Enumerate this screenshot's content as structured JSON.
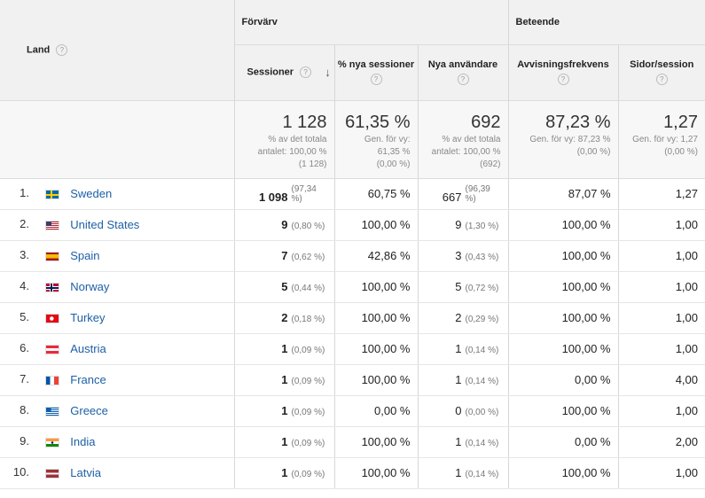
{
  "header": {
    "dimension": "Land",
    "help": "?",
    "groups": [
      "Förvärv",
      "Beteende"
    ],
    "columns": [
      {
        "label": "Sessioner",
        "help": "?"
      },
      {
        "label": "% nya sessioner",
        "help": "?"
      },
      {
        "label": "Nya användare",
        "help": "?"
      },
      {
        "label": "Avvisningsfrekvens",
        "help": "?"
      },
      {
        "label": "Sidor/session",
        "help": "?"
      }
    ],
    "sort_arrow": "↓"
  },
  "totals": [
    {
      "value": "1 128",
      "sub": [
        "% av det totala",
        "antalet: 100,00 %",
        "(1 128)"
      ]
    },
    {
      "value": "61,35 %",
      "sub": [
        "Gen. för vy:",
        "61,35 %",
        "(0,00 %)"
      ]
    },
    {
      "value": "692",
      "sub": [
        "% av det totala",
        "antalet: 100,00 %",
        "(692)"
      ]
    },
    {
      "value": "87,23 %",
      "sub": [
        "Gen. för vy: 87,23 %",
        "(0,00 %)"
      ]
    },
    {
      "value": "1,27",
      "sub": [
        "Gen. för vy: 1,27",
        "(0,00 %)"
      ]
    }
  ],
  "rows": [
    {
      "num": "1.",
      "country": "Sweden",
      "flag": "se",
      "sessions": "1 098",
      "sessions_pct": "(97,34 %)",
      "new_sessions": "60,75 %",
      "new_users": "667",
      "new_users_pct": "(96,39 %)",
      "bounce": "87,07 %",
      "pages": "1,27"
    },
    {
      "num": "2.",
      "country": "United States",
      "flag": "us",
      "sessions": "9",
      "sessions_pct": "(0,80 %)",
      "new_sessions": "100,00 %",
      "new_users": "9",
      "new_users_pct": "(1,30 %)",
      "bounce": "100,00 %",
      "pages": "1,00"
    },
    {
      "num": "3.",
      "country": "Spain",
      "flag": "es",
      "sessions": "7",
      "sessions_pct": "(0,62 %)",
      "new_sessions": "42,86 %",
      "new_users": "3",
      "new_users_pct": "(0,43 %)",
      "bounce": "100,00 %",
      "pages": "1,00"
    },
    {
      "num": "4.",
      "country": "Norway",
      "flag": "no",
      "sessions": "5",
      "sessions_pct": "(0,44 %)",
      "new_sessions": "100,00 %",
      "new_users": "5",
      "new_users_pct": "(0,72 %)",
      "bounce": "100,00 %",
      "pages": "1,00"
    },
    {
      "num": "5.",
      "country": "Turkey",
      "flag": "tr",
      "sessions": "2",
      "sessions_pct": "(0,18 %)",
      "new_sessions": "100,00 %",
      "new_users": "2",
      "new_users_pct": "(0,29 %)",
      "bounce": "100,00 %",
      "pages": "1,00"
    },
    {
      "num": "6.",
      "country": "Austria",
      "flag": "at",
      "sessions": "1",
      "sessions_pct": "(0,09 %)",
      "new_sessions": "100,00 %",
      "new_users": "1",
      "new_users_pct": "(0,14 %)",
      "bounce": "100,00 %",
      "pages": "1,00"
    },
    {
      "num": "7.",
      "country": "France",
      "flag": "fr",
      "sessions": "1",
      "sessions_pct": "(0,09 %)",
      "new_sessions": "100,00 %",
      "new_users": "1",
      "new_users_pct": "(0,14 %)",
      "bounce": "0,00 %",
      "pages": "4,00"
    },
    {
      "num": "8.",
      "country": "Greece",
      "flag": "gr",
      "sessions": "1",
      "sessions_pct": "(0,09 %)",
      "new_sessions": "0,00 %",
      "new_users": "0",
      "new_users_pct": "(0,00 %)",
      "bounce": "100,00 %",
      "pages": "1,00"
    },
    {
      "num": "9.",
      "country": "India",
      "flag": "in",
      "sessions": "1",
      "sessions_pct": "(0,09 %)",
      "new_sessions": "100,00 %",
      "new_users": "1",
      "new_users_pct": "(0,14 %)",
      "bounce": "0,00 %",
      "pages": "2,00"
    },
    {
      "num": "10.",
      "country": "Latvia",
      "flag": "lv",
      "sessions": "1",
      "sessions_pct": "(0,09 %)",
      "new_sessions": "100,00 %",
      "new_users": "1",
      "new_users_pct": "(0,14 %)",
      "bounce": "100,00 %",
      "pages": "1,00"
    }
  ],
  "colors": {
    "link": "#1e5fa6",
    "header_bg": "#f1f1f1",
    "totals_bg": "#f7f7f7"
  }
}
